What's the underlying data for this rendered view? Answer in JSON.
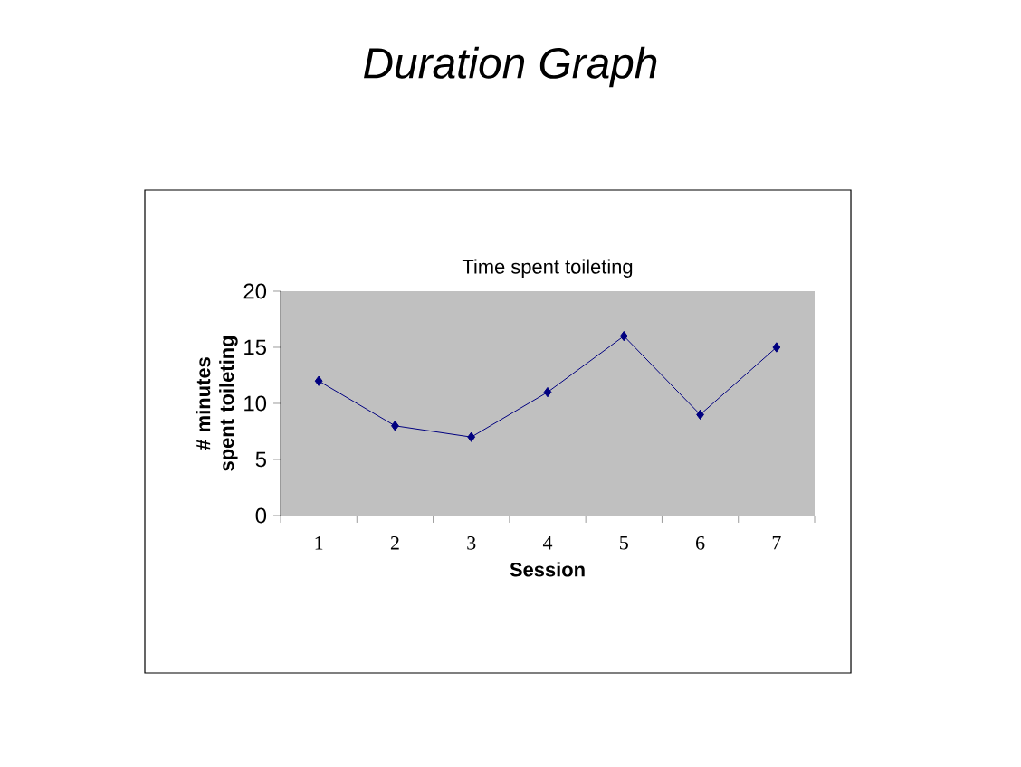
{
  "chart_data": {
    "type": "line",
    "title": "Duration Graph",
    "subtitle": "Time spent toileting",
    "xlabel": "Session",
    "ylabel": "# minutes spent toileting",
    "categories": [
      "1",
      "2",
      "3",
      "4",
      "5",
      "6",
      "7"
    ],
    "series": [
      {
        "color": "#000080",
        "values": [
          12,
          8,
          7,
          11,
          16,
          9,
          15
        ]
      }
    ],
    "ylim": [
      0,
      20
    ],
    "yticks": [
      0,
      5,
      10,
      15,
      20
    ],
    "marker": "diamond",
    "line_style": "solid"
  }
}
